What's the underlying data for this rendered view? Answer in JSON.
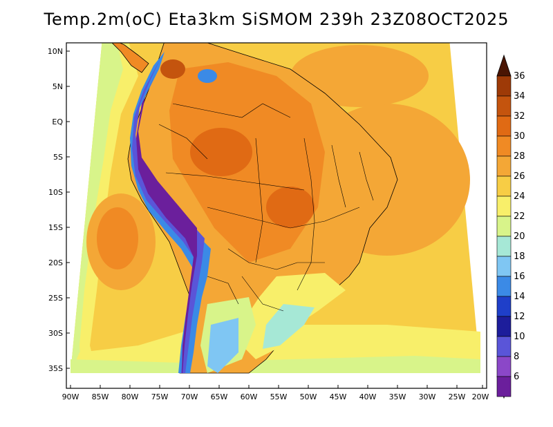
{
  "title": "Temp.2m(oC) Eta3km SiSMOM 239h 23Z08OCT2025",
  "lat_ticks": [
    "10N",
    "5N",
    "EQ",
    "5S",
    "10S",
    "15S",
    "20S",
    "25S",
    "30S",
    "35S"
  ],
  "lon_ticks": [
    "90W",
    "85W",
    "80W",
    "75W",
    "70W",
    "65W",
    "60W",
    "55W",
    "50W",
    "45W",
    "40W",
    "35W",
    "30W",
    "25W",
    "20W"
  ],
  "colorbar": {
    "labels": [
      "36",
      "34",
      "32",
      "30",
      "28",
      "26",
      "24",
      "22",
      "20",
      "18",
      "16",
      "14",
      "12",
      "10",
      "8",
      "6"
    ],
    "colors": [
      "#9e3a07",
      "#c4540e",
      "#e06a14",
      "#f08a24",
      "#f4a736",
      "#f7cd45",
      "#f8ef6a",
      "#d8f48a",
      "#a6e8d6",
      "#7fc6f3",
      "#3b8ae6",
      "#1f3fc9",
      "#1d1d9b",
      "#5a55d8",
      "#8b47c8",
      "#6b1f9c"
    ],
    "top_color": "#4a1503",
    "bottom_color": "#46117a"
  }
}
